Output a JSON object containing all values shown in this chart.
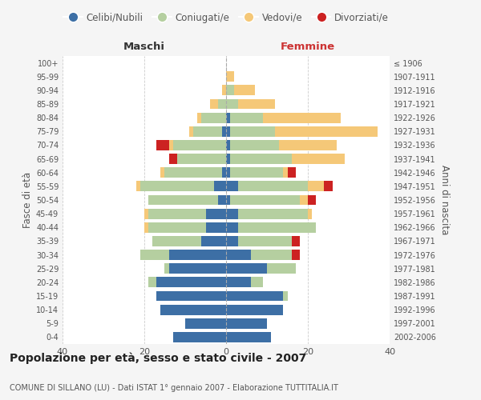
{
  "age_groups": [
    "0-4",
    "5-9",
    "10-14",
    "15-19",
    "20-24",
    "25-29",
    "30-34",
    "35-39",
    "40-44",
    "45-49",
    "50-54",
    "55-59",
    "60-64",
    "65-69",
    "70-74",
    "75-79",
    "80-84",
    "85-89",
    "90-94",
    "95-99",
    "100+"
  ],
  "birth_years": [
    "2002-2006",
    "1997-2001",
    "1992-1996",
    "1987-1991",
    "1982-1986",
    "1977-1981",
    "1972-1976",
    "1967-1971",
    "1962-1966",
    "1957-1961",
    "1952-1956",
    "1947-1951",
    "1942-1946",
    "1937-1941",
    "1932-1936",
    "1927-1931",
    "1922-1926",
    "1917-1921",
    "1912-1916",
    "1907-1911",
    "≤ 1906"
  ],
  "males": {
    "celibi": [
      13,
      10,
      16,
      17,
      17,
      14,
      14,
      6,
      5,
      5,
      2,
      3,
      1,
      0,
      0,
      1,
      0,
      0,
      0,
      0,
      0
    ],
    "coniugati": [
      0,
      0,
      0,
      0,
      2,
      1,
      7,
      12,
      14,
      14,
      17,
      18,
      14,
      12,
      13,
      7,
      6,
      2,
      0,
      0,
      0
    ],
    "vedovi": [
      0,
      0,
      0,
      0,
      0,
      0,
      0,
      0,
      1,
      1,
      0,
      1,
      1,
      0,
      1,
      1,
      1,
      2,
      1,
      0,
      0
    ],
    "divorziati": [
      0,
      0,
      0,
      0,
      0,
      0,
      0,
      0,
      0,
      0,
      0,
      0,
      0,
      2,
      3,
      0,
      0,
      0,
      0,
      0,
      0
    ]
  },
  "females": {
    "nubili": [
      11,
      10,
      14,
      14,
      6,
      10,
      6,
      3,
      3,
      3,
      1,
      3,
      1,
      1,
      1,
      1,
      1,
      0,
      0,
      0,
      0
    ],
    "coniugate": [
      0,
      0,
      0,
      1,
      3,
      7,
      10,
      13,
      19,
      17,
      17,
      17,
      13,
      15,
      12,
      11,
      8,
      3,
      2,
      0,
      0
    ],
    "vedove": [
      0,
      0,
      0,
      0,
      0,
      0,
      0,
      0,
      0,
      1,
      2,
      4,
      1,
      13,
      14,
      25,
      19,
      9,
      5,
      2,
      0
    ],
    "divorziate": [
      0,
      0,
      0,
      0,
      0,
      0,
      2,
      2,
      0,
      0,
      2,
      2,
      2,
      0,
      0,
      0,
      0,
      0,
      0,
      0,
      0
    ]
  },
  "colors": {
    "celibi_nubili": "#3d6fa5",
    "coniugati": "#b5cfA0",
    "vedovi": "#f5c878",
    "divorziati": "#cc2222"
  },
  "title": "Popolazione per età, sesso e stato civile - 2007",
  "subtitle": "COMUNE DI SILLANO (LU) - Dati ISTAT 1° gennaio 2007 - Elaborazione TUTTITALIA.IT",
  "xlabel_left": "Maschi",
  "xlabel_right": "Femmine",
  "ylabel_left": "Fasce di età",
  "ylabel_right": "Anni di nascita",
  "xlim": [
    -40,
    40
  ],
  "bg_color": "#f5f5f5",
  "plot_bg": "#ffffff"
}
